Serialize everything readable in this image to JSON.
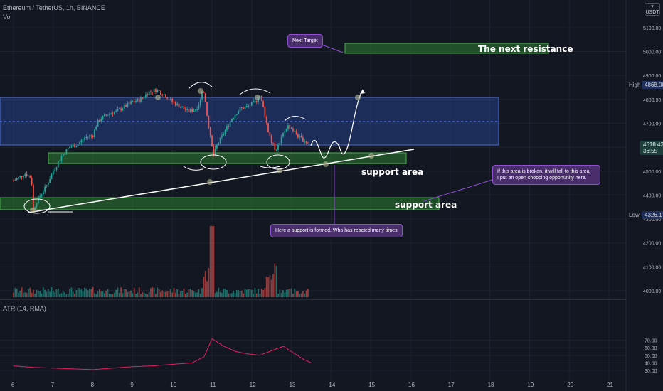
{
  "header": {
    "symbol_line": "Ethereum / TetherUS, 1h, BINANCE",
    "vol_label": "Vol",
    "atr_label": "ATR (14, RMA)",
    "currency_badge": "USDT"
  },
  "price_axis": {
    "ticks": [
      "5100.00",
      "5000.00",
      "4900.00",
      "4800.00",
      "4700.00",
      "4600.00",
      "4500.00",
      "4400.00",
      "4300.00",
      "4200.00",
      "4100.00",
      "4000.00"
    ],
    "high_label": "High",
    "high_value": "4868.00",
    "low_label": "Low",
    "low_value": "4326.17",
    "last_price": "4618.43",
    "countdown": "36:55"
  },
  "atr_axis": {
    "ticks": [
      "70.00",
      "60.00",
      "50.00",
      "40.00",
      "30.00"
    ]
  },
  "time_axis": {
    "ticks": [
      "6",
      "7",
      "8",
      "9",
      "10",
      "11",
      "12",
      "13",
      "14",
      "15",
      "16",
      "17",
      "18",
      "19",
      "20",
      "21"
    ]
  },
  "annotations": {
    "next_target": "Next Target",
    "next_resistance": "The next resistance",
    "support_area_1": "support area",
    "support_area_2": "support area",
    "broken_note_line1": "If this area is broken, it will fall to this area.",
    "broken_note_line2": "I put an open shopping opportunity here.",
    "support_formed_note": "Here a support is formed. Who has reacted many times"
  },
  "colors": {
    "background": "#131722",
    "up": "#26a69a",
    "down": "#ef5350",
    "resistance_zone": "#2a4a9e",
    "support_zone": "#2e7d32",
    "atr_line": "#e91e63",
    "note_bg": "#4a2d6b"
  },
  "chart_data": {
    "type": "candlestick",
    "title": "Ethereum / TetherUS, 1h, BINANCE",
    "x_ticks": [
      "6",
      "7",
      "8",
      "9",
      "10",
      "11",
      "12",
      "13",
      "14",
      "15",
      "16",
      "17",
      "18",
      "19",
      "20",
      "21"
    ],
    "ylim": [
      3970,
      5140
    ],
    "price_path": [
      [
        6.0,
        4460
      ],
      [
        6.3,
        4490
      ],
      [
        6.45,
        4470
      ],
      [
        6.5,
        4340
      ],
      [
        6.6,
        4380
      ],
      [
        6.8,
        4430
      ],
      [
        7.0,
        4500
      ],
      [
        7.2,
        4560
      ],
      [
        7.4,
        4600
      ],
      [
        7.6,
        4610
      ],
      [
        7.8,
        4640
      ],
      [
        8.0,
        4650
      ],
      [
        8.1,
        4700
      ],
      [
        8.2,
        4720
      ],
      [
        8.4,
        4740
      ],
      [
        8.6,
        4750
      ],
      [
        8.8,
        4770
      ],
      [
        9.0,
        4790
      ],
      [
        9.2,
        4800
      ],
      [
        9.4,
        4830
      ],
      [
        9.6,
        4840
      ],
      [
        9.8,
        4820
      ],
      [
        10.0,
        4790
      ],
      [
        10.2,
        4770
      ],
      [
        10.4,
        4750
      ],
      [
        10.6,
        4760
      ],
      [
        10.7,
        4790
      ],
      [
        10.75,
        4840
      ],
      [
        10.8,
        4820
      ],
      [
        10.9,
        4700
      ],
      [
        11.0,
        4600
      ],
      [
        11.05,
        4560
      ],
      [
        11.1,
        4600
      ],
      [
        11.3,
        4660
      ],
      [
        11.5,
        4720
      ],
      [
        11.7,
        4760
      ],
      [
        11.9,
        4770
      ],
      [
        12.0,
        4780
      ],
      [
        12.1,
        4790
      ],
      [
        12.2,
        4820
      ],
      [
        12.3,
        4760
      ],
      [
        12.4,
        4680
      ],
      [
        12.5,
        4620
      ],
      [
        12.6,
        4590
      ],
      [
        12.7,
        4610
      ],
      [
        12.8,
        4660
      ],
      [
        12.9,
        4690
      ],
      [
        13.0,
        4680
      ],
      [
        13.1,
        4660
      ],
      [
        13.2,
        4640
      ],
      [
        13.3,
        4630
      ],
      [
        13.4,
        4620
      ],
      [
        13.45,
        4618
      ]
    ],
    "atr_values": [
      [
        6.0,
        36
      ],
      [
        6.5,
        34
      ],
      [
        7.0,
        33
      ],
      [
        7.5,
        32
      ],
      [
        8.0,
        31
      ],
      [
        8.5,
        33
      ],
      [
        9.0,
        35
      ],
      [
        9.5,
        36
      ],
      [
        10.0,
        38
      ],
      [
        10.5,
        40
      ],
      [
        10.8,
        48
      ],
      [
        11.0,
        72
      ],
      [
        11.3,
        62
      ],
      [
        11.6,
        55
      ],
      [
        11.9,
        52
      ],
      [
        12.2,
        50
      ],
      [
        12.5,
        56
      ],
      [
        12.8,
        62
      ],
      [
        13.0,
        55
      ],
      [
        13.3,
        45
      ],
      [
        13.5,
        40
      ]
    ],
    "atr_ylim": [
      26,
      75
    ],
    "zones": [
      {
        "name": "resistance",
        "low": 4608,
        "high": 4810
      },
      {
        "name": "support",
        "low": 4535,
        "high": 4580
      },
      {
        "name": "lower support",
        "low": 4345,
        "high": 4395
      },
      {
        "name": "next resistance",
        "low": 4995,
        "high": 5042
      }
    ]
  }
}
